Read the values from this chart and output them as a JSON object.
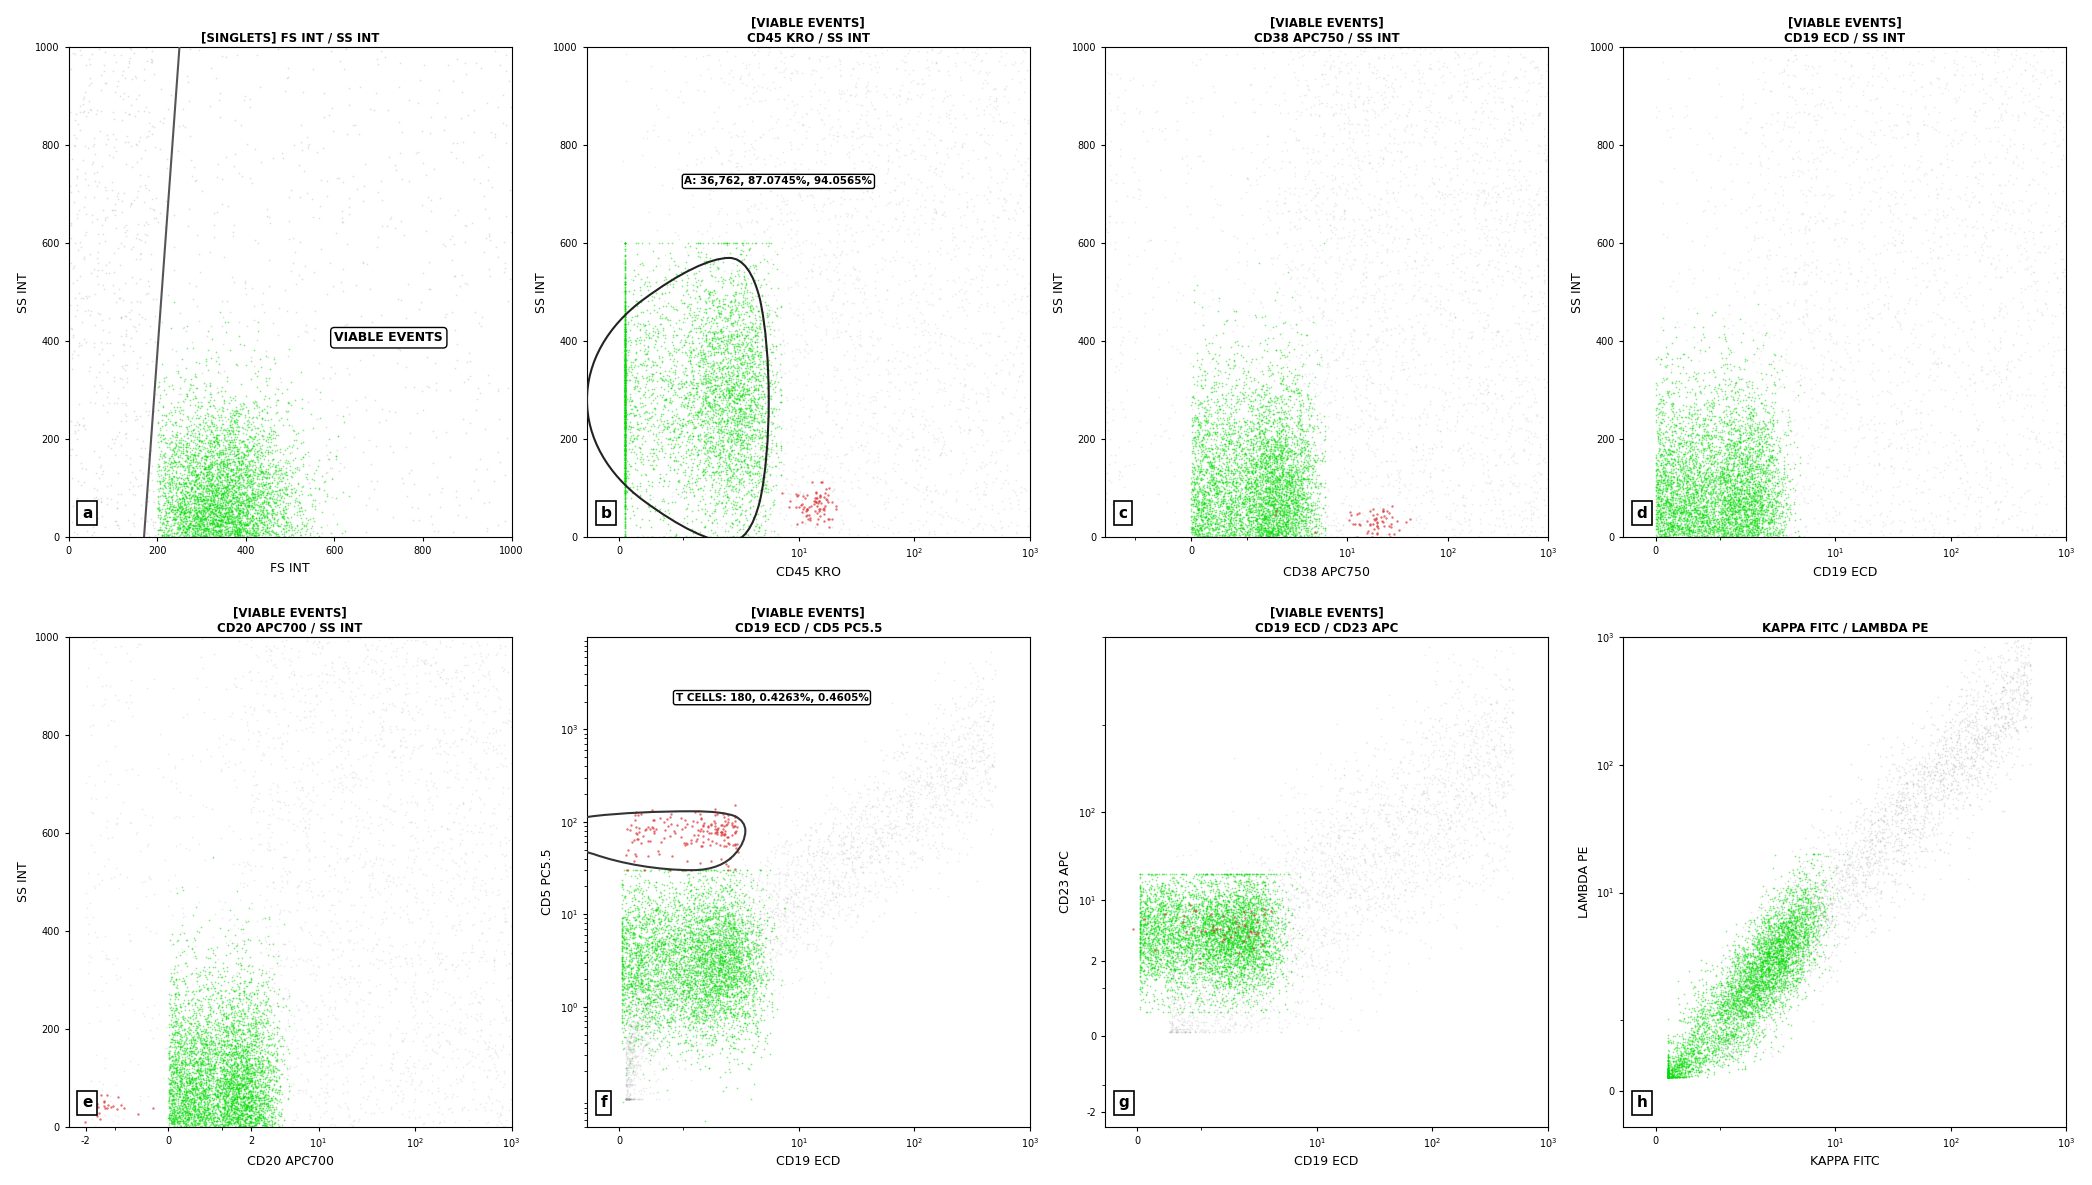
{
  "plots": [
    {
      "id": "a",
      "title": "[SINGLETS] FS INT / SS INT",
      "xlabel": "FS INT",
      "ylabel": "SS INT",
      "row": 0,
      "col": 0
    },
    {
      "id": "b",
      "title": "[VIABLE EVENTS]\nCD45 KRO / SS INT",
      "xlabel": "CD45 KRO",
      "ylabel": "SS INT",
      "annotation": "A: 36,762, 87.0745%, 94.0565%",
      "row": 0,
      "col": 1
    },
    {
      "id": "c",
      "title": "[VIABLE EVENTS]\nCD38 APC750 / SS INT",
      "xlabel": "CD38 APC750",
      "ylabel": "SS INT",
      "row": 0,
      "col": 2
    },
    {
      "id": "d",
      "title": "[VIABLE EVENTS]\nCD19 ECD / SS INT",
      "xlabel": "CD19 ECD",
      "ylabel": "SS INT",
      "row": 0,
      "col": 3
    },
    {
      "id": "e",
      "title": "[VIABLE EVENTS]\nCD20 APC700 / SS INT",
      "xlabel": "CD20 APC700",
      "ylabel": "SS INT",
      "row": 1,
      "col": 0
    },
    {
      "id": "f",
      "title": "[VIABLE EVENTS]\nCD19 ECD / CD5 PC5.5",
      "xlabel": "CD19 ECD",
      "ylabel": "CD5 PC5.5",
      "annotation": "T CELLS: 180, 0.4263%, 0.4605%",
      "row": 1,
      "col": 1
    },
    {
      "id": "g",
      "title": "[VIABLE EVENTS]\nCD19 ECD / CD23 APC",
      "xlabel": "CD19 ECD",
      "ylabel": "CD23 APC",
      "row": 1,
      "col": 2
    },
    {
      "id": "h",
      "title": "KAPPA FITC / LAMBDA PE",
      "xlabel": "KAPPA FITC",
      "ylabel": "LAMBDA PE",
      "row": 1,
      "col": 3
    }
  ],
  "green_color": "#00dd00",
  "gray_color": "#999999",
  "red_color": "#dd3333",
  "background": "#ffffff"
}
